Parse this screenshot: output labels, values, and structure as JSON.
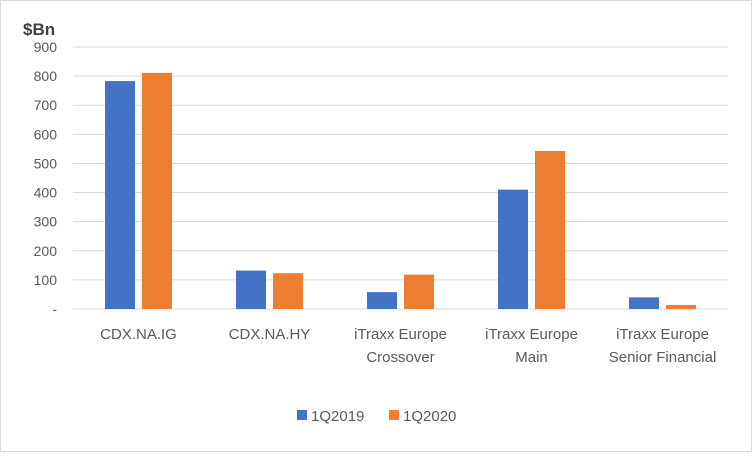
{
  "chart_data": {
    "type": "bar",
    "ylabel": "$Bn",
    "xlabel": "",
    "ylim": [
      0,
      900
    ],
    "ytick_step": 100,
    "ytick_labels": [
      "-",
      "100",
      "200",
      "300",
      "400",
      "500",
      "600",
      "700",
      "800",
      "900"
    ],
    "grid": true,
    "legend_position": "bottom",
    "categories": [
      [
        "CDX.NA.IG"
      ],
      [
        "CDX.NA.HY"
      ],
      [
        "iTraxx Europe",
        "Crossover"
      ],
      [
        "iTraxx Europe",
        "Main"
      ],
      [
        "iTraxx Europe",
        "Senior Financial"
      ]
    ],
    "series": [
      {
        "name": "1Q2019",
        "color": "#4472c4",
        "values": [
          783,
          132,
          58,
          410,
          40
        ]
      },
      {
        "name": "1Q2020",
        "color": "#ed7d31",
        "values": [
          811,
          123,
          118,
          543,
          14
        ]
      }
    ]
  }
}
